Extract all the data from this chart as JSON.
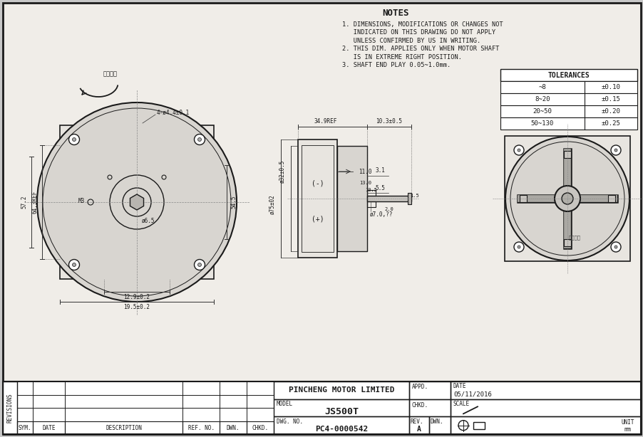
{
  "bg_color": "#c8c8c8",
  "paper_color": "#f0ede8",
  "line_color": "#1a1a1a",
  "dim_color": "#333333",
  "fill_light": "#e8e5e0",
  "fill_medium": "#d8d5d0",
  "title": "NOTES",
  "notes": [
    "1. DIMENSIONS, MODIFICATIONS OR CHANGES NOT",
    "   INDICATED ON THIS DRAWING DO NOT APPLY",
    "   UNLESS CONFIRMED BY US IN WRITING.",
    "2. THIS DIM. APPLIES ONLY WHEN MOTOR SHAFT",
    "   IS IN EXTREME RIGHT POSITION.",
    "3. SHAFT END PLAY 0.05~1.0mm."
  ],
  "tolerances": {
    "header": "TOLERANCES",
    "rows": [
      [
        "~8",
        "±0.10"
      ],
      [
        "8~20",
        "±0.15"
      ],
      [
        "20~50",
        "±0.20"
      ],
      [
        "50~130",
        "±0.25"
      ]
    ]
  },
  "title_block": {
    "company": "PINCHENG MOTOR LIMITED",
    "model_label": "MODEL",
    "model_value": "JS500T",
    "dwg_label": "DWG. NO.",
    "dwg_value": "PC4-0000542",
    "appd": "APPD.",
    "chkd": "CHKD.",
    "date_label": "DATE",
    "date_value": "05/11/2016",
    "scale_label": "SCALE",
    "rev_label": "REV.",
    "rev_value": "A",
    "dwn_label": "DWN.",
    "unit_label": "UNIT",
    "unit_value": "mm"
  },
  "revisions_label": "REVISIONS",
  "rev_cols": [
    "SYM.",
    "DATE",
    "DESCRIPTION",
    "REF. NO.",
    "DWN.",
    "CHKD."
  ]
}
